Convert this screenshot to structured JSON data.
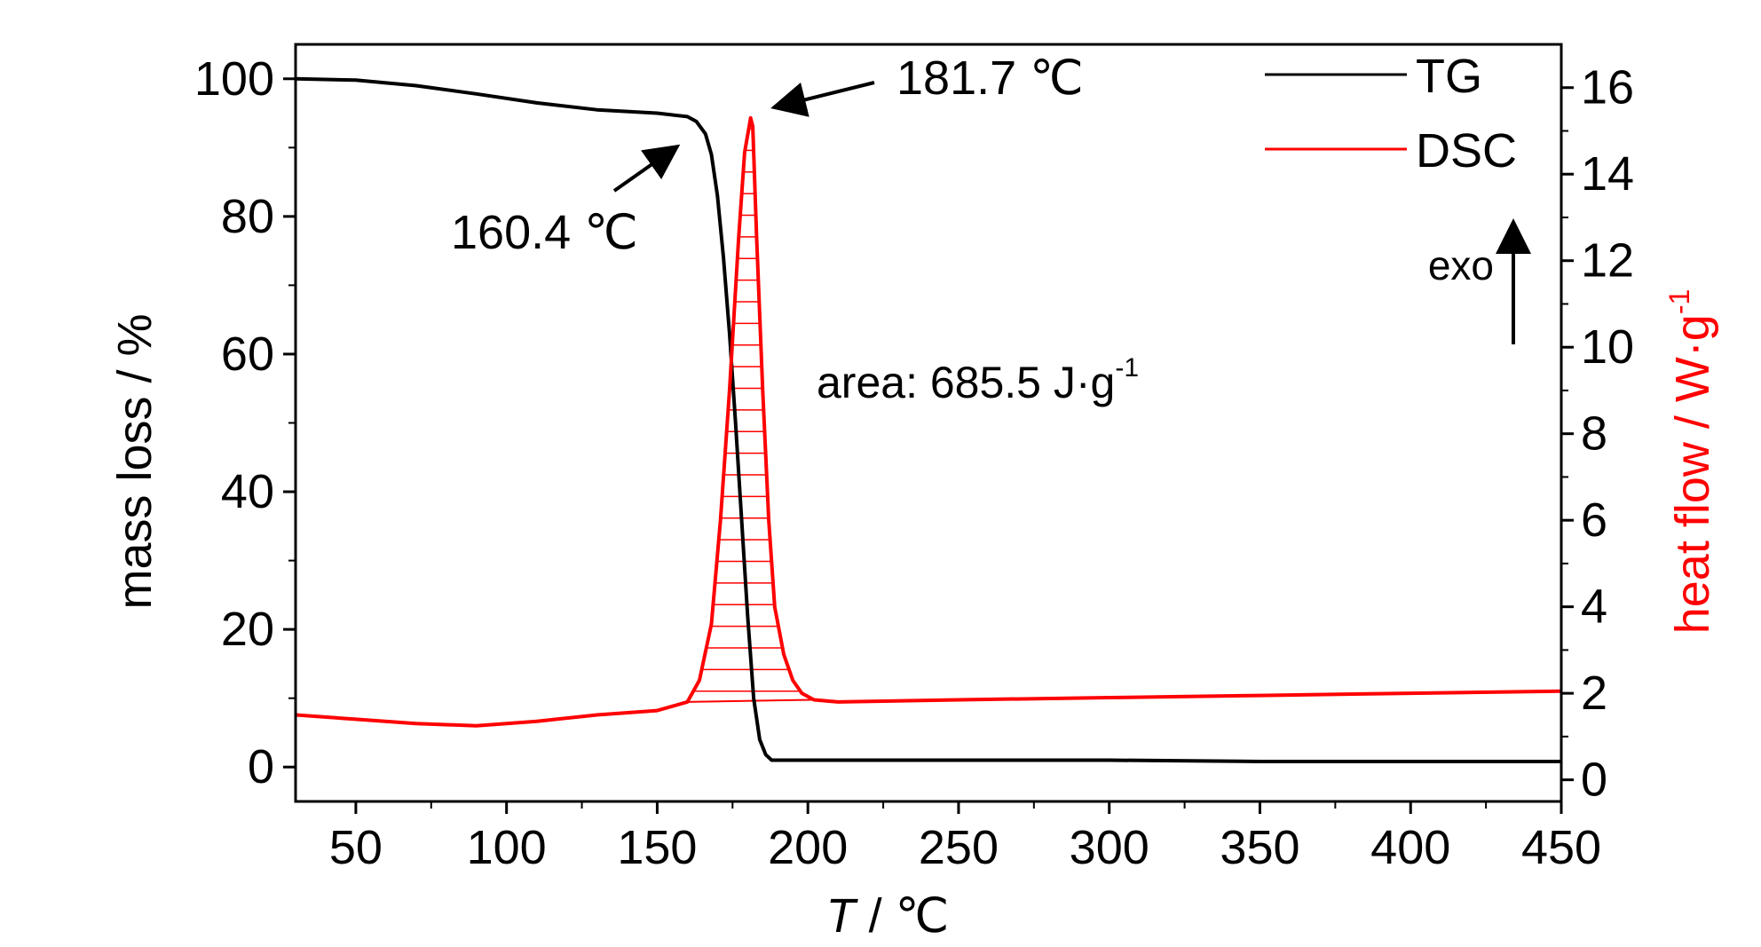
{
  "chart_data": {
    "type": "line",
    "xlabel_italic": "T",
    "xlabel_rest": " / ℃",
    "ylabel_left": "mass loss / %",
    "ylabel_right_main": "heat flow / W·g",
    "ylabel_right_sup": "-1",
    "xlim": [
      30,
      450
    ],
    "ylim_left": [
      -5,
      105
    ],
    "ylim_right": [
      -0.5,
      17
    ],
    "x_ticks": [
      50,
      100,
      150,
      200,
      250,
      300,
      350,
      400,
      450
    ],
    "y_left_ticks": [
      0,
      20,
      40,
      60,
      80,
      100
    ],
    "y_right_ticks": [
      0,
      2,
      4,
      6,
      8,
      10,
      12,
      14,
      16
    ],
    "legend_position": "top-right",
    "series": [
      {
        "name": "TG",
        "color": "#000000",
        "axis": "left",
        "x": [
          30,
          50,
          70,
          90,
          110,
          130,
          150,
          160,
          163,
          166,
          168,
          170,
          172,
          174,
          176,
          178,
          180,
          182,
          184,
          186,
          188,
          200,
          250,
          300,
          350,
          400,
          450
        ],
        "y": [
          100,
          99.8,
          99.0,
          97.8,
          96.5,
          95.5,
          95.0,
          94.5,
          93.8,
          92.0,
          89.0,
          83.0,
          74.0,
          63.0,
          50.0,
          36.0,
          22.0,
          10.0,
          4.0,
          1.8,
          1.0,
          1.0,
          1.0,
          1.0,
          0.8,
          0.8,
          0.8
        ]
      },
      {
        "name": "DSC",
        "color": "#ff0000",
        "axis": "right",
        "x": [
          30,
          50,
          70,
          90,
          110,
          130,
          150,
          160,
          164,
          168,
          171,
          174,
          177,
          179,
          181,
          181.7,
          183,
          185,
          187,
          189,
          192,
          195,
          198,
          202,
          210,
          250,
          300,
          350,
          400,
          450
        ],
        "y": [
          1.5,
          1.4,
          1.3,
          1.25,
          1.35,
          1.5,
          1.6,
          1.8,
          2.3,
          3.6,
          6.0,
          9.0,
          12.5,
          14.5,
          15.3,
          15.1,
          12.5,
          9.0,
          6.0,
          4.0,
          2.9,
          2.3,
          2.0,
          1.85,
          1.8,
          1.85,
          1.9,
          1.95,
          2.0,
          2.05
        ]
      }
    ],
    "annotations": {
      "peak_label": "181.7 ℃",
      "onset_label": "160.4 ℃",
      "area_text": "area: 685.5 J·g",
      "area_sup": "-1",
      "exo_label": "exo"
    }
  }
}
